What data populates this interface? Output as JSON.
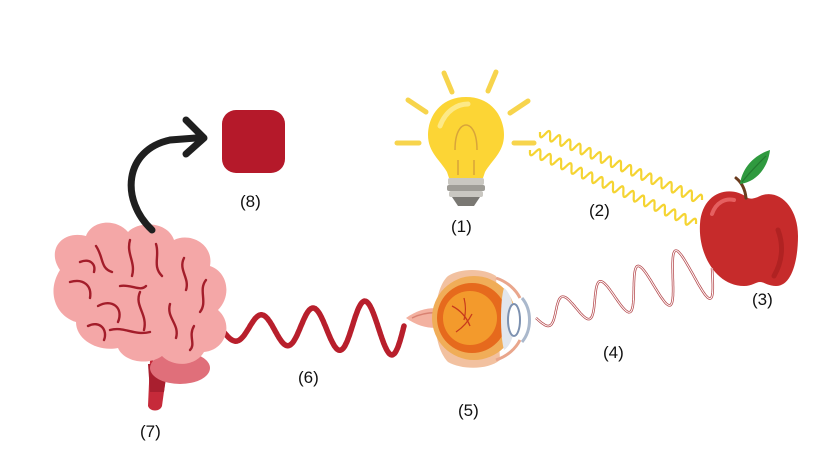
{
  "labels": {
    "l1": "(1)",
    "l2": "(2)",
    "l3": "(3)",
    "l4": "(4)",
    "l5": "(5)",
    "l6": "(6)",
    "l7": "(7)",
    "l8": "(8)"
  },
  "colors": {
    "bulb": "#fcd535",
    "light_wave": "#f5d432",
    "apple": "#c62b2b",
    "reflected_wave": "#b5484c",
    "nerve_signal": "#b81f2c",
    "brain": "#f4a7a7",
    "perceived_square": "#b5192a",
    "arrow": "#1f1f1f"
  },
  "icons": [
    "light-bulb-icon",
    "apple-icon",
    "eye-icon",
    "brain-icon",
    "red-square-icon",
    "curved-arrow-icon"
  ]
}
